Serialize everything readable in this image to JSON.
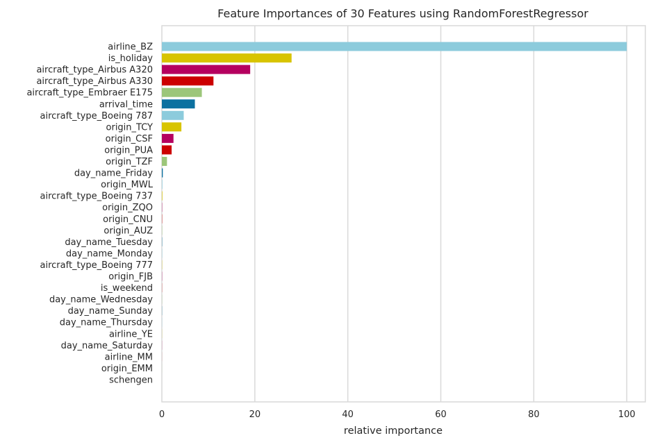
{
  "chart_data": {
    "type": "bar",
    "orientation": "horizontal",
    "title": "Feature Importances of 30 Features using RandomForestRegressor",
    "xlabel": "relative importance",
    "ylabel": "",
    "xlim": [
      0,
      104
    ],
    "xticks": [
      0,
      20,
      40,
      60,
      80,
      100
    ],
    "grid": "vertical",
    "categories": [
      "airline_BZ",
      "is_holiday",
      "aircraft_type_Airbus A320",
      "aircraft_type_Airbus A330",
      "aircraft_type_Embraer E175",
      "arrival_time",
      "aircraft_type_Boeing 787",
      "origin_TCY",
      "origin_CSF",
      "origin_PUA",
      "origin_TZF",
      "day_name_Friday",
      "origin_MWL",
      "aircraft_type_Boeing 737",
      "origin_ZQO",
      "origin_CNU",
      "origin_AUZ",
      "day_name_Tuesday",
      "day_name_Monday",
      "aircraft_type_Boeing 777",
      "origin_FJB",
      "is_weekend",
      "day_name_Wednesday",
      "day_name_Sunday",
      "day_name_Thursday",
      "airline_YE",
      "day_name_Saturday",
      "airline_MM",
      "origin_EMM",
      "schengen"
    ],
    "values": [
      100,
      27.9,
      19.0,
      11.1,
      8.6,
      7.1,
      4.7,
      4.2,
      2.5,
      2.1,
      1.1,
      0.2,
      0.1,
      0.1,
      0.05,
      0.05,
      0.05,
      0.05,
      0.05,
      0.04,
      0.04,
      0.03,
      0.03,
      0.03,
      0.03,
      0.02,
      0.02,
      0.01,
      0.01,
      0.0
    ],
    "colors": [
      "#8ccbdc",
      "#d8c400",
      "#b5005f",
      "#cc0000",
      "#9cc67a",
      "#0c71a0"
    ]
  }
}
